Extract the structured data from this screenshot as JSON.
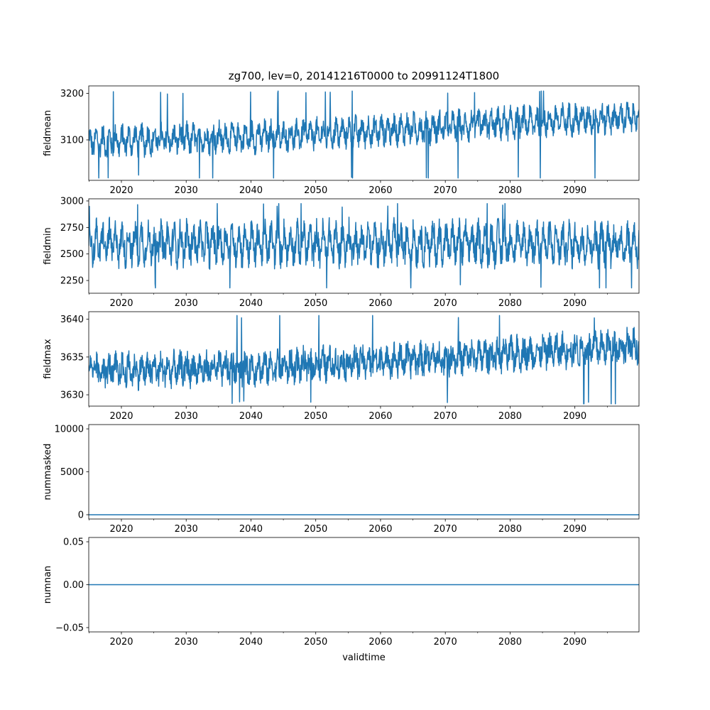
{
  "title": "zg700, lev=0, 20141216T0000 to 20991124T1800",
  "xlabel": "validtime",
  "x_tick_labels": [
    "2020",
    "2030",
    "2040",
    "2050",
    "2060",
    "2070",
    "2080",
    "2090"
  ],
  "line_color": "#1f77b4",
  "chart_data": [
    {
      "type": "line",
      "ylabel": "fieldmean",
      "x_range": [
        "2014-12-16T00:00",
        "2099-11-24T18:00"
      ],
      "ylim": [
        3013,
        3216
      ],
      "y_ticks": [
        3100,
        3200
      ],
      "y_tick_labels": [
        "3100",
        "3200"
      ],
      "series": [
        {
          "trend_start": 3095,
          "trend_end": 3148,
          "seasonal_amplitude": 18,
          "noise_amplitude": 22,
          "x": [
            2015,
            2020,
            2025,
            2030,
            2035,
            2040,
            2045,
            2050,
            2055,
            2060,
            2065,
            2070,
            2075,
            2080,
            2085,
            2090,
            2095,
            2099.9
          ],
          "y": [
            3095,
            3098,
            3100,
            3102,
            3104,
            3106,
            3109,
            3112,
            3116,
            3120,
            3124,
            3128,
            3132,
            3136,
            3140,
            3144,
            3147,
            3148
          ],
          "min": 3018,
          "max": 3205
        }
      ]
    },
    {
      "type": "line",
      "ylabel": "fieldmin",
      "x_range": [
        "2014-12-16T00:00",
        "2099-11-24T18:00"
      ],
      "ylim": [
        2130,
        3020
      ],
      "y_ticks": [
        2250,
        2500,
        2750,
        3000
      ],
      "y_tick_labels": [
        "2250",
        "2500",
        "2750",
        "3000"
      ],
      "series": [
        {
          "trend_start": 2600,
          "trend_end": 2600,
          "seasonal_amplitude": 120,
          "noise_amplitude": 130,
          "x": [
            2015,
            2020,
            2025,
            2030,
            2035,
            2040,
            2045,
            2050,
            2055,
            2060,
            2065,
            2070,
            2075,
            2080,
            2085,
            2090,
            2095,
            2099.9
          ],
          "y": [
            2600,
            2600,
            2600,
            2600,
            2600,
            2600,
            2600,
            2600,
            2600,
            2600,
            2600,
            2600,
            2600,
            2600,
            2600,
            2600,
            2600,
            2600
          ],
          "min": 2180,
          "max": 2975
        }
      ]
    },
    {
      "type": "line",
      "ylabel": "fieldmax",
      "x_range": [
        "2014-12-16T00:00",
        "2099-11-24T18:00"
      ],
      "ylim": [
        3628.5,
        3641
      ],
      "y_ticks": [
        3630,
        3635,
        3640
      ],
      "y_tick_labels": [
        "3630",
        "3635",
        "3640"
      ],
      "series": [
        {
          "trend_start": 3633,
          "trend_end": 3636.5,
          "seasonal_amplitude": 1.0,
          "noise_amplitude": 1.7,
          "x": [
            2015,
            2020,
            2025,
            2030,
            2035,
            2040,
            2045,
            2050,
            2055,
            2060,
            2065,
            2070,
            2075,
            2080,
            2085,
            2090,
            2095,
            2099.9
          ],
          "y": [
            3633.2,
            3633.2,
            3633.3,
            3633.4,
            3633.5,
            3633.6,
            3633.7,
            3634.0,
            3634.3,
            3634.5,
            3634.7,
            3634.9,
            3635.1,
            3635.4,
            3635.7,
            3636.0,
            3636.3,
            3636.5
          ],
          "min": 3628.8,
          "max": 3640.5
        }
      ]
    },
    {
      "type": "line",
      "ylabel": "nummasked",
      "x_range": [
        "2014-12-16T00:00",
        "2099-11-24T18:00"
      ],
      "ylim": [
        -500,
        10500
      ],
      "y_ticks": [
        0,
        5000,
        10000
      ],
      "y_tick_labels": [
        "0",
        "5000",
        "10000"
      ],
      "series": [
        {
          "x": [
            2014.96,
            2099.9
          ],
          "y": [
            0,
            0
          ]
        }
      ]
    },
    {
      "type": "line",
      "ylabel": "numnan",
      "x_range": [
        "2014-12-16T00:00",
        "2099-11-24T18:00"
      ],
      "ylim": [
        -0.055,
        0.055
      ],
      "y_ticks": [
        -0.05,
        0.0,
        0.05
      ],
      "y_tick_labels": [
        "−0.05",
        "0.00",
        "0.05"
      ],
      "series": [
        {
          "x": [
            2014.96,
            2099.9
          ],
          "y": [
            0,
            0
          ]
        }
      ]
    }
  ]
}
